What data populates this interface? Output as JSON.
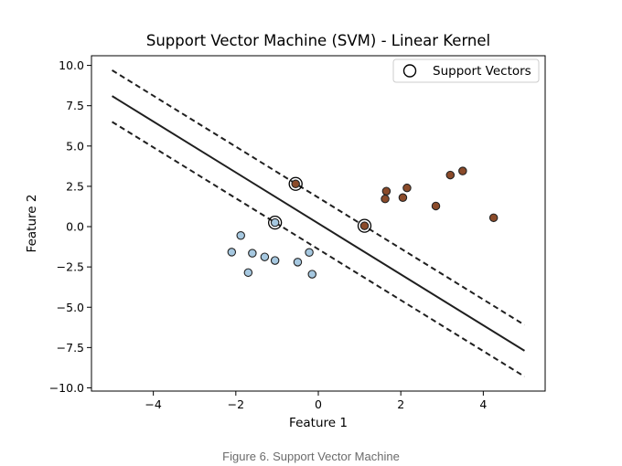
{
  "caption": "Figure 6. Support Vector Machine",
  "chart_data": {
    "type": "scatter",
    "title": "Support Vector Machine (SVM) - Linear Kernel",
    "xlabel": "Feature 1",
    "ylabel": "Feature 2",
    "xlim": [
      -5.5,
      5.5
    ],
    "ylim": [
      -10.2,
      10.6
    ],
    "xticks": [
      -4,
      -2,
      0,
      2,
      4
    ],
    "xtick_labels": [
      "−4",
      "−2",
      "0",
      "2",
      "4"
    ],
    "yticks": [
      10.0,
      7.5,
      5.0,
      2.5,
      0.0,
      -2.5,
      -5.0,
      -7.5,
      -10.0
    ],
    "ytick_labels": [
      "10.0",
      "7.5",
      "5.0",
      "2.5",
      "0.0",
      "−2.5",
      "−5.0",
      "−7.5",
      "−10.0"
    ],
    "grid": false,
    "legend": {
      "position": "top-right",
      "entries": [
        "Support Vectors"
      ]
    },
    "series": [
      {
        "class": 0,
        "color": "#a6c8e0",
        "points": [
          [
            -1.05,
            0.25
          ],
          [
            -1.88,
            -0.55
          ],
          [
            -2.1,
            -1.58
          ],
          [
            -1.6,
            -1.65
          ],
          [
            -1.3,
            -1.88
          ],
          [
            -1.05,
            -2.1
          ],
          [
            -1.7,
            -2.85
          ],
          [
            -0.22,
            -1.6
          ],
          [
            -0.5,
            -2.2
          ],
          [
            -0.15,
            -2.95
          ]
        ]
      },
      {
        "class": 1,
        "color": "#8b4b2a",
        "points": [
          [
            -0.55,
            2.65
          ],
          [
            1.12,
            0.05
          ],
          [
            1.65,
            2.2
          ],
          [
            1.62,
            1.72
          ],
          [
            2.15,
            2.4
          ],
          [
            2.05,
            1.8
          ],
          [
            2.85,
            1.28
          ],
          [
            3.2,
            3.2
          ],
          [
            3.5,
            3.45
          ],
          [
            4.25,
            0.55
          ]
        ]
      }
    ],
    "support_vectors": [
      [
        -0.55,
        2.65
      ],
      [
        -1.05,
        0.25
      ],
      [
        1.12,
        0.05
      ]
    ],
    "decision_boundary": {
      "x": [
        -5,
        5
      ],
      "y": [
        8.1,
        -7.7
      ]
    },
    "margin_upper": {
      "x": [
        -5,
        5
      ],
      "y": [
        9.7,
        -6.1
      ]
    },
    "margin_lower": {
      "x": [
        -5,
        5
      ],
      "y": [
        6.5,
        -9.3
      ]
    },
    "colors": {
      "line": "#1f1f1f",
      "marker_edge": "#222222"
    }
  }
}
